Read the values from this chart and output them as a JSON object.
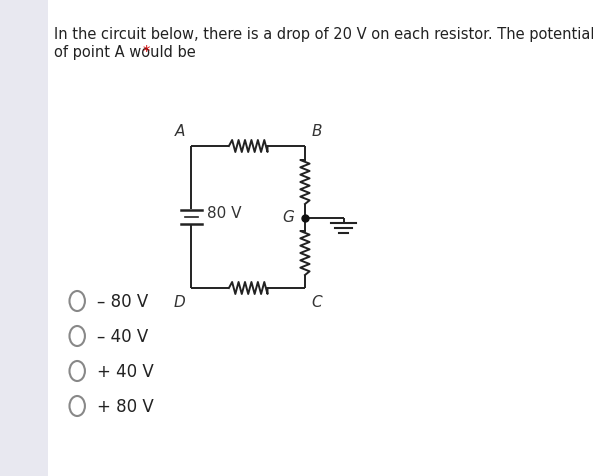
{
  "title_line1": "In the circuit below, there is a drop of 20 V on each resistor. The potential",
  "title_line2": "of point A would be ",
  "title_star": "*",
  "title_fontsize": 10.5,
  "title_color": "#222222",
  "star_color": "#cc0000",
  "bg_color": "#ffffff",
  "panel_bg": "#e8e8f0",
  "wire_color": "#222222",
  "label_color": "#333333",
  "options": [
    "– 80 V",
    "– 40 V",
    "+ 40 V",
    "+ 80 V"
  ],
  "battery_label": "80 V",
  "node_dot_color": "#111111",
  "option_text_color": "#222222",
  "option_circle_color": "#888888"
}
